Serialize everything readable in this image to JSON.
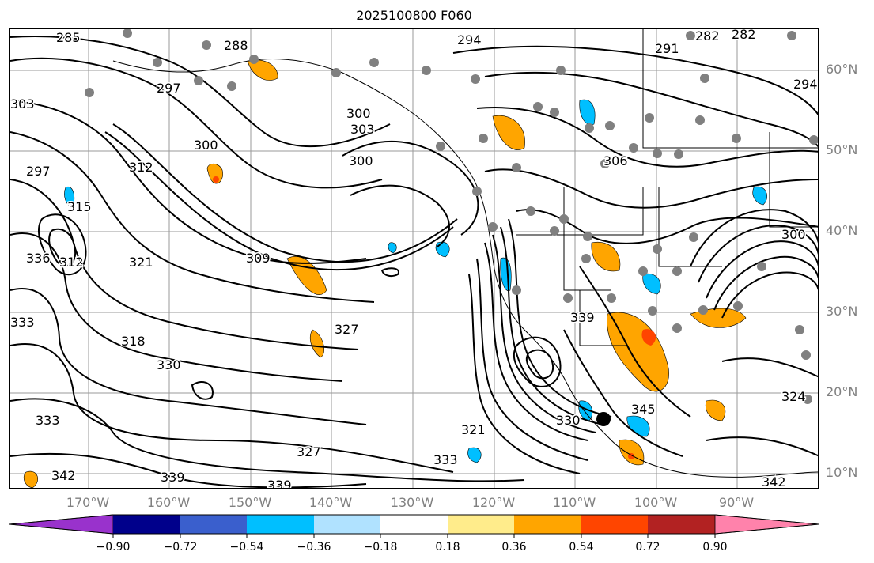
{
  "title": "2025100800 F060",
  "lat_labels": [
    "60°N",
    "50°N",
    "40°N",
    "30°N",
    "20°N",
    "10°N"
  ],
  "lon_labels": [
    "170°W",
    "160°W",
    "150°W",
    "140°W",
    "130°W",
    "120°W",
    "110°W",
    "100°W",
    "90°W"
  ],
  "contour_labels": [
    "285",
    "288",
    "294",
    "291",
    "282",
    "282",
    "300",
    "303",
    "300",
    "300",
    "306",
    "312",
    "315",
    "312",
    "309",
    "321",
    "318",
    "330",
    "333",
    "336",
    "333",
    "339",
    "342",
    "339",
    "342",
    "345",
    "327",
    "321",
    "333",
    "339",
    "330",
    "303",
    "297",
    "294",
    "300",
    "297",
    "324",
    "327"
  ],
  "colorbar": {
    "tick_labels": [
      "−0.90",
      "−0.72",
      "−0.54",
      "−0.36",
      "−0.18",
      "0.18",
      "0.36",
      "0.54",
      "0.72",
      "0.90"
    ],
    "colors": [
      "#9932cc",
      "#00008b",
      "#3a5fcd",
      "#00bfff",
      "#b0e2ff",
      "#ffffff",
      "#ffec8b",
      "#ffa500",
      "#ff4500",
      "#b22222",
      "#ff82ab"
    ]
  },
  "colors": {
    "contour": "#000000",
    "grid": "#9a9a9a",
    "station_dots": "#808080",
    "marker": "#000000"
  }
}
